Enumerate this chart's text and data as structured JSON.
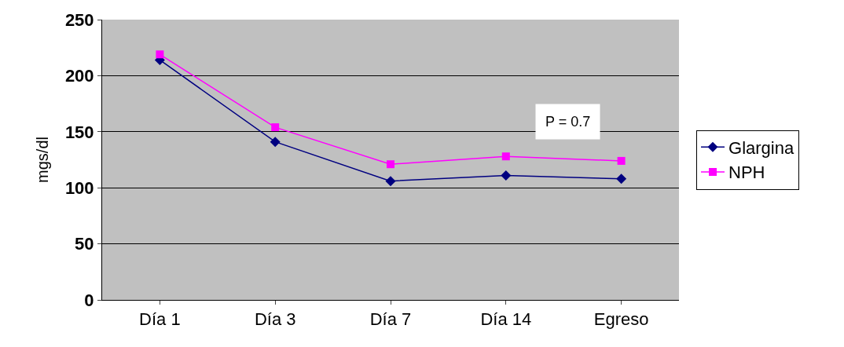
{
  "chart_data": {
    "type": "line",
    "ylabel": "mgs/dl",
    "categories": [
      "Día 1",
      "Día 3",
      "Día 7",
      "Día 14",
      "Egreso"
    ],
    "series": [
      {
        "name": "Glargina",
        "color": "#000080",
        "marker": "diamond",
        "values": [
          214,
          141,
          106,
          111,
          108
        ]
      },
      {
        "name": "NPH",
        "color": "#ff00ff",
        "marker": "square",
        "values": [
          219,
          154,
          121,
          128,
          124
        ]
      }
    ],
    "ylim": [
      0,
      250
    ],
    "yticks": [
      0,
      50,
      100,
      150,
      200,
      250
    ],
    "grid": "y",
    "legend": "right",
    "annotations": [
      "P = 0.7"
    ]
  }
}
